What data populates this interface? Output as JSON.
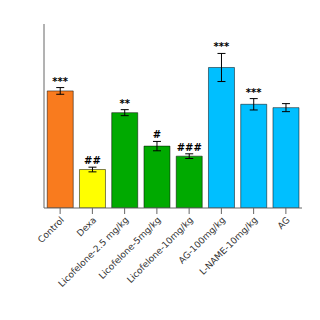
{
  "chart_data": {
    "type": "bar",
    "categories": [
      "Control",
      "Dexa",
      "Licofelone-2.5 mg/kg",
      "Licofelone-5mg/kg",
      "Licofelone-10mg/kg",
      "AG-100mg/kg",
      "L-NAME-10mg/kg",
      "AG"
    ],
    "values": [
      3.5,
      1.15,
      2.85,
      1.85,
      1.55,
      4.2,
      3.1,
      3.0
    ],
    "errors": [
      0.1,
      0.07,
      0.09,
      0.14,
      0.07,
      0.42,
      0.17,
      0.12
    ],
    "colors": [
      "#F97B1E",
      "#FFFF00",
      "#00AA00",
      "#00AA00",
      "#00AA00",
      "#00BFFF",
      "#00BFFF",
      "#00BFFF"
    ],
    "annotations": [
      "***",
      "##",
      "**",
      "#",
      "###",
      "***",
      "***",
      null
    ],
    "ylim": [
      0,
      5.5
    ],
    "tick_labels": "x",
    "grid": false
  }
}
